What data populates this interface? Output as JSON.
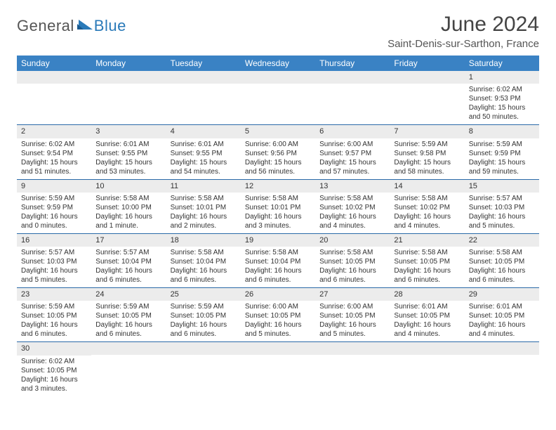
{
  "logo": {
    "textGeneral": "General",
    "textBlue": "Blue"
  },
  "title": "June 2024",
  "location": "Saint-Denis-sur-Sarthon, France",
  "colors": {
    "headerBg": "#3a82c4",
    "headerText": "#ffffff",
    "rowBorder": "#2a6aa8",
    "dayBarBg": "#ececec",
    "textColor": "#333333",
    "logoBlue": "#2a7ab9",
    "logoGrey": "#555555",
    "pageBg": "#ffffff"
  },
  "typography": {
    "titleFontSize": 30,
    "locationFontSize": 15,
    "dayHeaderFontSize": 12,
    "cellFontSize": 10
  },
  "dayNames": [
    "Sunday",
    "Monday",
    "Tuesday",
    "Wednesday",
    "Thursday",
    "Friday",
    "Saturday"
  ],
  "weeks": [
    [
      {
        "blank": true
      },
      {
        "blank": true
      },
      {
        "blank": true
      },
      {
        "blank": true
      },
      {
        "blank": true
      },
      {
        "blank": true
      },
      {
        "day": "1",
        "sunrise": "Sunrise: 6:02 AM",
        "sunset": "Sunset: 9:53 PM",
        "daylight": "Daylight: 15 hours and 50 minutes."
      }
    ],
    [
      {
        "day": "2",
        "sunrise": "Sunrise: 6:02 AM",
        "sunset": "Sunset: 9:54 PM",
        "daylight": "Daylight: 15 hours and 51 minutes."
      },
      {
        "day": "3",
        "sunrise": "Sunrise: 6:01 AM",
        "sunset": "Sunset: 9:55 PM",
        "daylight": "Daylight: 15 hours and 53 minutes."
      },
      {
        "day": "4",
        "sunrise": "Sunrise: 6:01 AM",
        "sunset": "Sunset: 9:55 PM",
        "daylight": "Daylight: 15 hours and 54 minutes."
      },
      {
        "day": "5",
        "sunrise": "Sunrise: 6:00 AM",
        "sunset": "Sunset: 9:56 PM",
        "daylight": "Daylight: 15 hours and 56 minutes."
      },
      {
        "day": "6",
        "sunrise": "Sunrise: 6:00 AM",
        "sunset": "Sunset: 9:57 PM",
        "daylight": "Daylight: 15 hours and 57 minutes."
      },
      {
        "day": "7",
        "sunrise": "Sunrise: 5:59 AM",
        "sunset": "Sunset: 9:58 PM",
        "daylight": "Daylight: 15 hours and 58 minutes."
      },
      {
        "day": "8",
        "sunrise": "Sunrise: 5:59 AM",
        "sunset": "Sunset: 9:59 PM",
        "daylight": "Daylight: 15 hours and 59 minutes."
      }
    ],
    [
      {
        "day": "9",
        "sunrise": "Sunrise: 5:59 AM",
        "sunset": "Sunset: 9:59 PM",
        "daylight": "Daylight: 16 hours and 0 minutes."
      },
      {
        "day": "10",
        "sunrise": "Sunrise: 5:58 AM",
        "sunset": "Sunset: 10:00 PM",
        "daylight": "Daylight: 16 hours and 1 minute."
      },
      {
        "day": "11",
        "sunrise": "Sunrise: 5:58 AM",
        "sunset": "Sunset: 10:01 PM",
        "daylight": "Daylight: 16 hours and 2 minutes."
      },
      {
        "day": "12",
        "sunrise": "Sunrise: 5:58 AM",
        "sunset": "Sunset: 10:01 PM",
        "daylight": "Daylight: 16 hours and 3 minutes."
      },
      {
        "day": "13",
        "sunrise": "Sunrise: 5:58 AM",
        "sunset": "Sunset: 10:02 PM",
        "daylight": "Daylight: 16 hours and 4 minutes."
      },
      {
        "day": "14",
        "sunrise": "Sunrise: 5:58 AM",
        "sunset": "Sunset: 10:02 PM",
        "daylight": "Daylight: 16 hours and 4 minutes."
      },
      {
        "day": "15",
        "sunrise": "Sunrise: 5:57 AM",
        "sunset": "Sunset: 10:03 PM",
        "daylight": "Daylight: 16 hours and 5 minutes."
      }
    ],
    [
      {
        "day": "16",
        "sunrise": "Sunrise: 5:57 AM",
        "sunset": "Sunset: 10:03 PM",
        "daylight": "Daylight: 16 hours and 5 minutes."
      },
      {
        "day": "17",
        "sunrise": "Sunrise: 5:57 AM",
        "sunset": "Sunset: 10:04 PM",
        "daylight": "Daylight: 16 hours and 6 minutes."
      },
      {
        "day": "18",
        "sunrise": "Sunrise: 5:58 AM",
        "sunset": "Sunset: 10:04 PM",
        "daylight": "Daylight: 16 hours and 6 minutes."
      },
      {
        "day": "19",
        "sunrise": "Sunrise: 5:58 AM",
        "sunset": "Sunset: 10:04 PM",
        "daylight": "Daylight: 16 hours and 6 minutes."
      },
      {
        "day": "20",
        "sunrise": "Sunrise: 5:58 AM",
        "sunset": "Sunset: 10:05 PM",
        "daylight": "Daylight: 16 hours and 6 minutes."
      },
      {
        "day": "21",
        "sunrise": "Sunrise: 5:58 AM",
        "sunset": "Sunset: 10:05 PM",
        "daylight": "Daylight: 16 hours and 6 minutes."
      },
      {
        "day": "22",
        "sunrise": "Sunrise: 5:58 AM",
        "sunset": "Sunset: 10:05 PM",
        "daylight": "Daylight: 16 hours and 6 minutes."
      }
    ],
    [
      {
        "day": "23",
        "sunrise": "Sunrise: 5:59 AM",
        "sunset": "Sunset: 10:05 PM",
        "daylight": "Daylight: 16 hours and 6 minutes."
      },
      {
        "day": "24",
        "sunrise": "Sunrise: 5:59 AM",
        "sunset": "Sunset: 10:05 PM",
        "daylight": "Daylight: 16 hours and 6 minutes."
      },
      {
        "day": "25",
        "sunrise": "Sunrise: 5:59 AM",
        "sunset": "Sunset: 10:05 PM",
        "daylight": "Daylight: 16 hours and 6 minutes."
      },
      {
        "day": "26",
        "sunrise": "Sunrise: 6:00 AM",
        "sunset": "Sunset: 10:05 PM",
        "daylight": "Daylight: 16 hours and 5 minutes."
      },
      {
        "day": "27",
        "sunrise": "Sunrise: 6:00 AM",
        "sunset": "Sunset: 10:05 PM",
        "daylight": "Daylight: 16 hours and 5 minutes."
      },
      {
        "day": "28",
        "sunrise": "Sunrise: 6:01 AM",
        "sunset": "Sunset: 10:05 PM",
        "daylight": "Daylight: 16 hours and 4 minutes."
      },
      {
        "day": "29",
        "sunrise": "Sunrise: 6:01 AM",
        "sunset": "Sunset: 10:05 PM",
        "daylight": "Daylight: 16 hours and 4 minutes."
      }
    ],
    [
      {
        "day": "30",
        "sunrise": "Sunrise: 6:02 AM",
        "sunset": "Sunset: 10:05 PM",
        "daylight": "Daylight: 16 hours and 3 minutes."
      },
      {
        "blank": true
      },
      {
        "blank": true
      },
      {
        "blank": true
      },
      {
        "blank": true
      },
      {
        "blank": true
      },
      {
        "blank": true
      }
    ]
  ]
}
